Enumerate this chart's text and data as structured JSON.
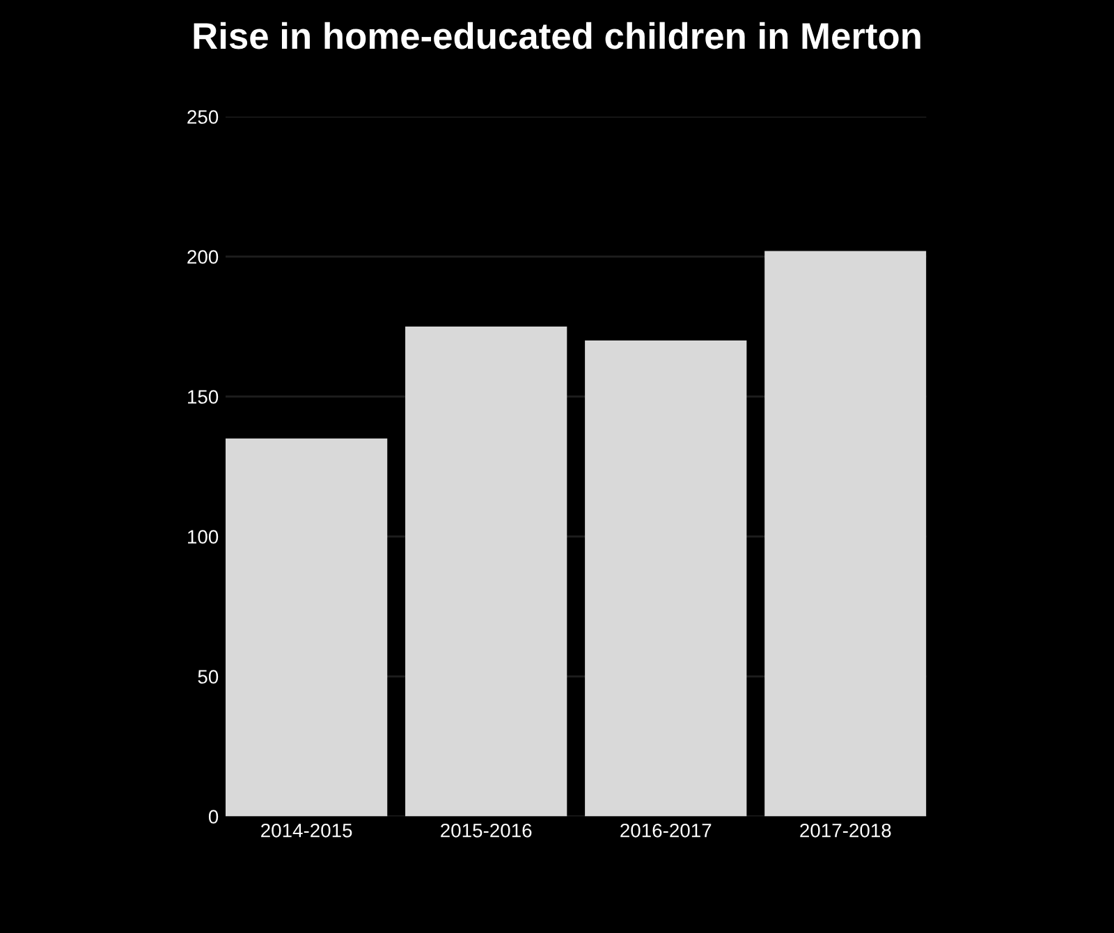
{
  "chart_data": {
    "type": "bar",
    "title": "Rise in home-educated children in Merton",
    "categories": [
      "2014-2015",
      "2015-2016",
      "2016-2017",
      "2017-2018"
    ],
    "values": [
      135,
      175,
      170,
      202
    ],
    "color": "#d9d9d9",
    "ylim": [
      0,
      250
    ],
    "yticks": [
      0,
      50,
      100,
      150,
      200,
      250
    ],
    "grid": "y"
  }
}
